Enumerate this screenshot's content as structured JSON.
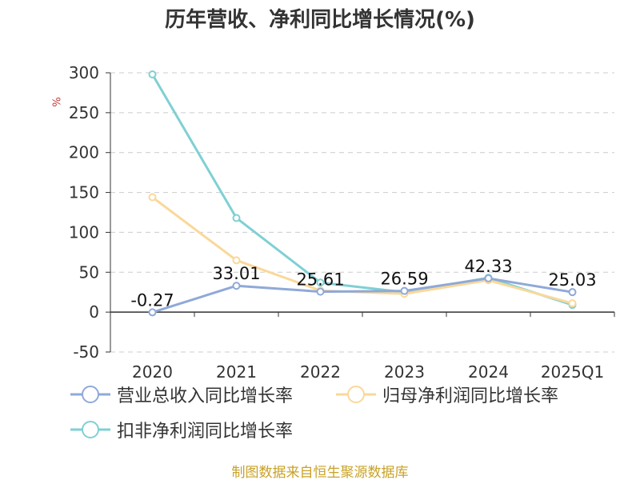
{
  "title": "历年营收、净利同比增长情况(%)",
  "unit": "%",
  "footer": "制图数据来自恒生聚源数据库",
  "chart_data": {
    "type": "line",
    "title": "历年营收、净利同比增长情况(%)",
    "ylabel": "%",
    "categories": [
      "2020",
      "2021",
      "2022",
      "2023",
      "2024",
      "2025Q1"
    ],
    "ylim": [
      -50,
      300
    ],
    "yticks": [
      -50,
      0,
      50,
      100,
      150,
      200,
      250,
      300
    ],
    "grid": true,
    "legend_position": "bottom",
    "series": [
      {
        "name": "营业总收入同比增长率",
        "color": "#8fa9d8",
        "values": [
          -0.27,
          33.01,
          25.61,
          26.59,
          42.33,
          25.03
        ],
        "labels": [
          "-0.27",
          "33.01",
          "25.61",
          "26.59",
          "42.33",
          "25.03"
        ]
      },
      {
        "name": "归母净利润同比增长率",
        "color": "#fad89a",
        "values": [
          144,
          65,
          27,
          23,
          40,
          11
        ]
      },
      {
        "name": "扣非净利润同比增长率",
        "color": "#7fd0d4",
        "values": [
          298,
          118,
          37,
          25,
          43,
          9
        ]
      }
    ]
  }
}
